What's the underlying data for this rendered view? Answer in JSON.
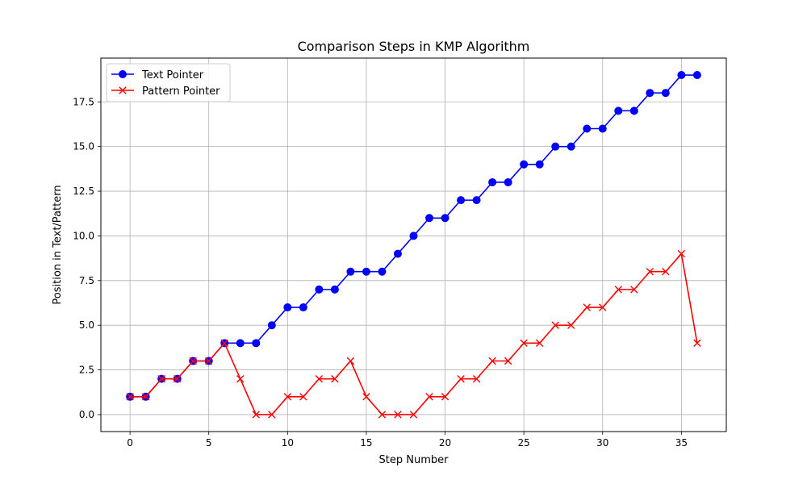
{
  "chart_data": {
    "type": "line",
    "title": "Comparison Steps in KMP Algorithm",
    "xlabel": "Step Number",
    "ylabel": "Position in Text/Pattern",
    "xlim": [
      -1.85,
      37.85
    ],
    "ylim": [
      -0.95,
      19.95
    ],
    "xticks": [
      0,
      5,
      10,
      15,
      20,
      25,
      30,
      35
    ],
    "yticks": [
      0.0,
      2.5,
      5.0,
      7.5,
      10.0,
      12.5,
      15.0,
      17.5
    ],
    "ytick_labels": [
      "0.0",
      "2.5",
      "5.0",
      "7.5",
      "10.0",
      "12.5",
      "15.0",
      "17.5"
    ],
    "grid": true,
    "legend_position": "top-left",
    "x": [
      0,
      1,
      2,
      3,
      4,
      5,
      6,
      7,
      8,
      9,
      10,
      11,
      12,
      13,
      14,
      15,
      16,
      17,
      18,
      19,
      20,
      21,
      22,
      23,
      24,
      25,
      26,
      27,
      28,
      29,
      30,
      31,
      32,
      33,
      34,
      35,
      36
    ],
    "series": [
      {
        "name": "Text Pointer",
        "color": "#0000ff",
        "marker": "circle",
        "values": [
          1,
          1,
          2,
          2,
          3,
          3,
          4,
          4,
          4,
          5,
          6,
          6,
          7,
          7,
          8,
          8,
          8,
          9,
          10,
          11,
          11,
          12,
          12,
          13,
          13,
          14,
          14,
          15,
          15,
          16,
          16,
          17,
          17,
          18,
          18,
          19,
          19
        ]
      },
      {
        "name": "Pattern Pointer",
        "color": "#ff0000",
        "marker": "x",
        "values": [
          1,
          1,
          2,
          2,
          3,
          3,
          4,
          2,
          0,
          0,
          1,
          1,
          2,
          2,
          3,
          1,
          0,
          0,
          0,
          1,
          1,
          2,
          2,
          3,
          3,
          4,
          4,
          5,
          5,
          6,
          6,
          7,
          7,
          8,
          8,
          9,
          4
        ]
      }
    ]
  }
}
